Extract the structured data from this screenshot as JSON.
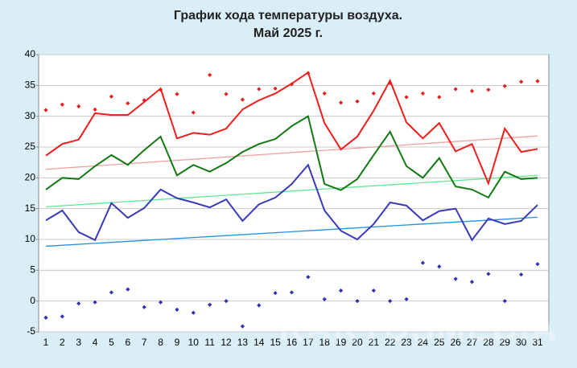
{
  "chart_data": {
    "type": "line",
    "title": [
      "График хода температуры воздуха.",
      "Май 2025 г."
    ],
    "watermark": "KAKTUSMEDIA",
    "categories": [
      "1",
      "2",
      "3",
      "4",
      "5",
      "6",
      "7",
      "8",
      "9",
      "10",
      "11",
      "12",
      "13",
      "14",
      "15",
      "16",
      "17",
      "18",
      "19",
      "20",
      "21",
      "22",
      "23",
      "24",
      "25",
      "26",
      "27",
      "28",
      "29",
      "30",
      "31"
    ],
    "series": [
      {
        "style": "points",
        "color": "#e02020",
        "values": [
          31,
          31.9,
          31.6,
          31.1,
          33.2,
          32.1,
          32.6,
          34.3,
          33.6,
          30.6,
          36.7,
          33.6,
          32.7,
          34.4,
          34.5,
          35.2,
          37,
          33.7,
          32.2,
          32.4,
          33.7,
          35.4,
          33.1,
          33.7,
          33.1,
          34.4,
          34.1,
          34.3,
          34.9,
          35.6,
          35.7
        ]
      },
      {
        "style": "points",
        "color": "#3030b0",
        "values": [
          -2.7,
          -2.5,
          -0.4,
          -0.2,
          1.4,
          1.9,
          -1,
          -0.2,
          -1.4,
          -1.9,
          -0.6,
          0,
          -4.1,
          -0.7,
          1.3,
          1.4,
          3.9,
          0.3,
          1.7,
          0,
          1.7,
          0,
          0.3,
          6.2,
          5.6,
          3.6,
          3.1,
          4.4,
          0,
          4.3,
          6
        ]
      },
      {
        "style": "line",
        "color": "#ee1c1c",
        "values": [
          23.6,
          25.5,
          26.2,
          30.5,
          30.2,
          30.2,
          32.3,
          34.5,
          26.4,
          27.3,
          27,
          28,
          31.1,
          32.6,
          33.7,
          35.3,
          37.1,
          28.9,
          24.6,
          26.7,
          30.9,
          35.8,
          29,
          26.4,
          28.9,
          24.3,
          25.5,
          19.1,
          28,
          24.2,
          24.7
        ]
      },
      {
        "style": "line",
        "color": "#127812",
        "values": [
          18.1,
          20,
          19.8,
          21.9,
          23.7,
          22.1,
          24.5,
          26.7,
          20.4,
          22.1,
          21,
          22.4,
          24.2,
          25.5,
          26.3,
          28.4,
          30,
          19,
          18,
          19.8,
          23.7,
          27.5,
          21.9,
          20,
          23.2,
          18.6,
          18.1,
          16.8,
          21,
          19.8,
          20
        ]
      },
      {
        "style": "line",
        "color": "#3a3ab8",
        "values": [
          13.1,
          14.7,
          11.2,
          9.9,
          15.9,
          13.5,
          15.1,
          18.1,
          16.7,
          16,
          15.2,
          16.5,
          13,
          15.7,
          16.8,
          19,
          22.1,
          14.7,
          11.4,
          10,
          12.5,
          16,
          15.5,
          13.1,
          14.6,
          15,
          9.9,
          13.4,
          12.5,
          13,
          15.6
        ]
      }
    ],
    "trendlines": [
      {
        "color": "#f0a0a0",
        "values": [
          21.4,
          26.8
        ]
      },
      {
        "color": "#60e890",
        "values": [
          15.3,
          20.4
        ]
      },
      {
        "color": "#2090e0",
        "values": [
          8.9,
          13.6
        ]
      }
    ],
    "ylim": [
      -5,
      40
    ],
    "yticks": [
      -5,
      0,
      5,
      10,
      15,
      20,
      25,
      30,
      35,
      40
    ],
    "grid": true
  }
}
